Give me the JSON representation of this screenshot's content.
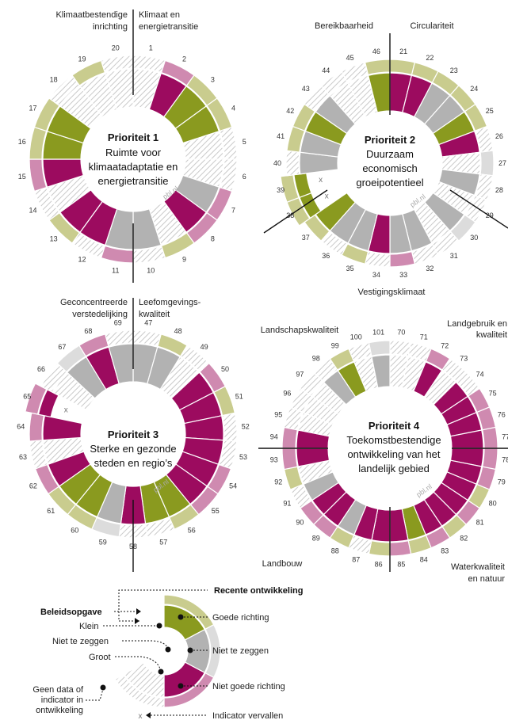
{
  "colors": {
    "good": "#8a9a1f",
    "neutral": "#b2b2b2",
    "bad": "#9c0b5f",
    "nodata": "hatch",
    "trend_good": "#c9cc8e",
    "trend_neutral": "#dcdcdc",
    "trend_bad": "#cf8ab0"
  },
  "chart_data": [
    {
      "type": "radial",
      "title": "Prioriteit 1",
      "subtitle_lines": [
        "Ruimte voor",
        "klimaatadaptatie en",
        "energietransitie"
      ],
      "watermark": "pbl.nl",
      "sector_labels": [
        {
          "lines": [
            "Klimaatbestendige",
            "inrichting"
          ],
          "align": "right"
        },
        {
          "lines": [
            "Klimaat en",
            "energietransitie"
          ],
          "align": "left"
        }
      ],
      "indicators": [
        {
          "n": "1",
          "task": "nodata",
          "trend": "nodata"
        },
        {
          "n": "2",
          "task": "bad",
          "trend": "bad"
        },
        {
          "n": "3",
          "task": "good",
          "trend": "good"
        },
        {
          "n": "4",
          "task": "good",
          "trend": "good"
        },
        {
          "n": "5",
          "task": "nodata",
          "trend": "nodata"
        },
        {
          "n": "6",
          "task": "nodata",
          "trend": "nodata"
        },
        {
          "n": "7",
          "task": "neutral",
          "trend": "bad"
        },
        {
          "n": "8",
          "task": "bad",
          "trend": "bad"
        },
        {
          "n": "9",
          "task": "nodata",
          "trend": "good"
        },
        {
          "n": "10",
          "task": "neutral",
          "trend": "nodata"
        },
        {
          "n": "11",
          "task": "neutral",
          "trend": "bad"
        },
        {
          "n": "12",
          "task": "bad",
          "trend": "nodata"
        },
        {
          "n": "13",
          "task": "bad",
          "trend": "good"
        },
        {
          "n": "14",
          "task": "nodata",
          "trend": "nodata"
        },
        {
          "n": "15",
          "task": "bad",
          "trend": "bad"
        },
        {
          "n": "16",
          "task": "good",
          "trend": "good"
        },
        {
          "n": "17",
          "task": "good",
          "trend": "good"
        },
        {
          "n": "18",
          "task": "nodata",
          "trend": "nodata"
        },
        {
          "n": "19",
          "task": "nodata",
          "trend": "good"
        },
        {
          "n": "20",
          "task": "nodata",
          "trend": "nodata"
        }
      ]
    },
    {
      "type": "radial",
      "title": "Prioriteit 2",
      "subtitle_lines": [
        "Duurzaam",
        "economisch",
        "groeipotentieel"
      ],
      "watermark": "pbl.nl",
      "sector_labels": [
        {
          "lines": [
            "Bereikbaarheid"
          ],
          "align": "middle"
        },
        {
          "lines": [
            "Circulariteit"
          ],
          "align": "middle"
        },
        {
          "lines": [
            "Vestigingsklimaat"
          ],
          "align": "middle"
        }
      ],
      "indicators": [
        {
          "n": "21",
          "task": "bad",
          "trend": "good"
        },
        {
          "n": "22",
          "task": "bad",
          "trend": "good"
        },
        {
          "n": "23",
          "task": "neutral",
          "trend": "good"
        },
        {
          "n": "24",
          "task": "neutral",
          "trend": "good"
        },
        {
          "n": "25",
          "task": "good",
          "trend": "good"
        },
        {
          "n": "26",
          "task": "bad",
          "trend": "nodata"
        },
        {
          "n": "27",
          "task": "nodata",
          "trend": "neutral"
        },
        {
          "n": "28",
          "task": "neutral",
          "trend": "nodata"
        },
        {
          "n": "29",
          "task": "nodata",
          "trend": "nodata"
        },
        {
          "n": "30",
          "task": "neutral",
          "trend": "neutral"
        },
        {
          "n": "31",
          "task": "nodata",
          "trend": "nodata"
        },
        {
          "n": "32",
          "task": "neutral",
          "trend": "nodata"
        },
        {
          "n": "33",
          "task": "neutral",
          "trend": "bad"
        },
        {
          "n": "34",
          "task": "bad",
          "trend": "nodata"
        },
        {
          "n": "35",
          "task": "neutral",
          "trend": "good"
        },
        {
          "n": "36",
          "task": "neutral",
          "trend": "nodata"
        },
        {
          "n": "37",
          "task": "good",
          "trend": "good"
        },
        {
          "n": "38",
          "task": "good",
          "trend": "good",
          "dropped": true
        },
        {
          "n": "39",
          "task": "good",
          "trend": "good",
          "dropped": true
        },
        {
          "n": "40",
          "task": "neutral",
          "trend": "nodata"
        },
        {
          "n": "41",
          "task": "neutral",
          "trend": "good"
        },
        {
          "n": "42",
          "task": "good",
          "trend": "good"
        },
        {
          "n": "43",
          "task": "neutral",
          "trend": "nodata"
        },
        {
          "n": "44",
          "task": "nodata",
          "trend": "nodata"
        },
        {
          "n": "45",
          "task": "nodata",
          "trend": "nodata"
        },
        {
          "n": "46",
          "task": "good",
          "trend": "good"
        }
      ]
    },
    {
      "type": "radial",
      "title": "Prioriteit 3",
      "subtitle_lines": [
        "Sterke en gezonde",
        "steden en regio’s"
      ],
      "watermark": "pbl.nl",
      "sector_labels": [
        {
          "lines": [
            "Geconcentreerde",
            "verstedelijking"
          ],
          "align": "right"
        },
        {
          "lines": [
            "Leefomgevings-",
            "kwaliteit"
          ],
          "align": "left"
        }
      ],
      "indicators": [
        {
          "n": "47",
          "task": "neutral",
          "trend": "nodata"
        },
        {
          "n": "48",
          "task": "neutral",
          "trend": "good"
        },
        {
          "n": "49",
          "task": "nodata",
          "trend": "nodata"
        },
        {
          "n": "50",
          "task": "bad",
          "trend": "bad"
        },
        {
          "n": "51",
          "task": "bad",
          "trend": "good"
        },
        {
          "n": "52",
          "task": "bad",
          "trend": "nodata"
        },
        {
          "n": "53",
          "task": "bad",
          "trend": "nodata"
        },
        {
          "n": "54",
          "task": "bad",
          "trend": "bad"
        },
        {
          "n": "55",
          "task": "bad",
          "trend": "bad"
        },
        {
          "n": "56",
          "task": "good",
          "trend": "good"
        },
        {
          "n": "57",
          "task": "good",
          "trend": "nodata"
        },
        {
          "n": "58",
          "task": "bad",
          "trend": "nodata"
        },
        {
          "n": "59",
          "task": "neutral",
          "trend": "neutral"
        },
        {
          "n": "60",
          "task": "good",
          "trend": "good"
        },
        {
          "n": "61",
          "task": "good",
          "trend": "good"
        },
        {
          "n": "62",
          "task": "bad",
          "trend": "bad"
        },
        {
          "n": "63",
          "task": "nodata",
          "trend": "nodata"
        },
        {
          "n": "64",
          "task": "bad",
          "trend": "bad"
        },
        {
          "n": "65",
          "task": "bad",
          "trend": "bad",
          "dropped": true
        },
        {
          "n": "66",
          "task": "nodata",
          "trend": "nodata"
        },
        {
          "n": "67",
          "task": "neutral",
          "trend": "neutral"
        },
        {
          "n": "68",
          "task": "bad",
          "trend": "bad"
        },
        {
          "n": "69",
          "task": "neutral",
          "trend": "nodata"
        }
      ]
    },
    {
      "type": "radial",
      "title": "Prioriteit 4",
      "subtitle_lines": [
        "Toekomstbestendige",
        "ontwikkeling van het",
        "landelijk gebied"
      ],
      "watermark": "pbl.nl",
      "sector_labels": [
        {
          "lines": [
            "Landschapskwaliteit"
          ],
          "align": "middle"
        },
        {
          "lines": [
            "Landgebruik en",
            "kwaliteit"
          ],
          "align": "right"
        },
        {
          "lines": [
            "Landbouw"
          ],
          "align": "middle"
        },
        {
          "lines": [
            "Waterkwaliteit",
            "en natuur"
          ],
          "align": "right"
        }
      ],
      "indicators": [
        {
          "n": "70",
          "task": "nodata",
          "trend": "nodata"
        },
        {
          "n": "71",
          "task": "nodata",
          "trend": "nodata"
        },
        {
          "n": "72",
          "task": "bad",
          "trend": "bad"
        },
        {
          "n": "73",
          "task": "nodata",
          "trend": "nodata"
        },
        {
          "n": "74",
          "task": "bad",
          "trend": "nodata"
        },
        {
          "n": "75",
          "task": "bad",
          "trend": "bad"
        },
        {
          "n": "76",
          "task": "bad",
          "trend": "bad"
        },
        {
          "n": "77",
          "task": "bad",
          "trend": "bad"
        },
        {
          "n": "78",
          "task": "bad",
          "trend": "bad"
        },
        {
          "n": "79",
          "task": "bad",
          "trend": "bad"
        },
        {
          "n": "80",
          "task": "bad",
          "trend": "good"
        },
        {
          "n": "81",
          "task": "bad",
          "trend": "bad"
        },
        {
          "n": "82",
          "task": "bad",
          "trend": "good"
        },
        {
          "n": "83",
          "task": "bad",
          "trend": "bad"
        },
        {
          "n": "84",
          "task": "good",
          "trend": "good"
        },
        {
          "n": "85",
          "task": "bad",
          "trend": "bad"
        },
        {
          "n": "86",
          "task": "bad",
          "trend": "good"
        },
        {
          "n": "87",
          "task": "bad",
          "trend": "nodata"
        },
        {
          "n": "88",
          "task": "neutral",
          "trend": "good"
        },
        {
          "n": "89",
          "task": "bad",
          "trend": "bad"
        },
        {
          "n": "90",
          "task": "bad",
          "trend": "bad"
        },
        {
          "n": "91",
          "task": "neutral",
          "trend": "nodata"
        },
        {
          "n": "92",
          "task": "nodata",
          "trend": "good"
        },
        {
          "n": "93",
          "task": "bad",
          "trend": "bad"
        },
        {
          "n": "94",
          "task": "bad",
          "trend": "bad"
        },
        {
          "n": "95",
          "task": "nodata",
          "trend": "nodata"
        },
        {
          "n": "96",
          "task": "nodata",
          "trend": "nodata"
        },
        {
          "n": "97",
          "task": "nodata",
          "trend": "nodata"
        },
        {
          "n": "98",
          "task": "neutral",
          "trend": "nodata"
        },
        {
          "n": "99",
          "task": "good",
          "trend": "good"
        },
        {
          "n": "100",
          "task": "nodata",
          "trend": "nodata"
        },
        {
          "n": "101",
          "task": "neutral",
          "trend": "neutral"
        }
      ]
    }
  ],
  "legend": {
    "recent": "Recente ontwikkeling",
    "task": "Beleidsopgave",
    "small": "Klein",
    "cannot_say_left": "Niet te zeggen",
    "large": "Groot",
    "no_data": [
      "Geen data of",
      "indicator in",
      "ontwikkeling"
    ],
    "good_direction": "Goede richting",
    "cannot_say_right": "Niet te zeggen",
    "not_good_direction": "Niet goede richting",
    "dropped": "Indicator vervallen",
    "x": "x"
  }
}
